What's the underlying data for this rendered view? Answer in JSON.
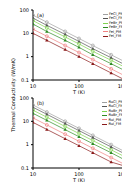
{
  "y_label": "Thermal Conductivity (W/mK)",
  "chart_data": [
    {
      "type": "line",
      "annotation": "(a)",
      "x_label": "T (K)",
      "log": true,
      "legend": "upper right",
      "x": [
        10,
        20,
        50,
        100,
        200,
        500,
        1000
      ],
      "xlim": [
        10,
        1000
      ],
      "xticks": [
        10,
        100,
        1000
      ],
      "ylim": [
        0.1,
        100
      ],
      "yticks": [
        0.1,
        1,
        10,
        100
      ],
      "series": [
        {
          "name": "FeCl_PM",
          "color": "#a0a0a0",
          "marker": "circle",
          "values": [
            60,
            30,
            12,
            6,
            3,
            1.2,
            0.6
          ]
        },
        {
          "name": "FeCl_FM",
          "color": "#555555",
          "marker": "triangle",
          "values": [
            45,
            22,
            9,
            4.5,
            2.2,
            0.9,
            0.45
          ]
        },
        {
          "name": "FeBr_PM",
          "color": "#7fd34e",
          "marker": "circle",
          "values": [
            35,
            17,
            7,
            3.5,
            1.7,
            0.7,
            0.35
          ]
        },
        {
          "name": "FeBr_FM",
          "color": "#2e8b22",
          "marker": "triangle",
          "values": [
            25,
            12,
            5,
            2.5,
            1.2,
            0.5,
            0.25
          ]
        },
        {
          "name": "FeI_PM",
          "color": "#f08080",
          "marker": "circle",
          "values": [
            15,
            7.5,
            3,
            1.5,
            0.75,
            0.3,
            0.15
          ]
        },
        {
          "name": "FeI_FM",
          "color": "#8b1a1a",
          "marker": "triangle",
          "values": [
            10,
            5,
            2,
            1,
            0.5,
            0.2,
            0.1
          ]
        }
      ]
    },
    {
      "type": "line",
      "annotation": "(b)",
      "x_label": "T (K)",
      "log": true,
      "legend": "upper right",
      "x": [
        10,
        20,
        50,
        100,
        200,
        500,
        1000
      ],
      "xlim": [
        10,
        1000
      ],
      "xticks": [
        10,
        100,
        1000
      ],
      "ylim": [
        0.1,
        100
      ],
      "yticks": [
        0.1,
        1,
        10,
        100
      ],
      "series": [
        {
          "name": "RuCl_PM",
          "color": "#a0a0a0",
          "marker": "circle",
          "values": [
            50,
            25,
            10,
            5,
            2.5,
            1,
            0.5
          ]
        },
        {
          "name": "RuCl_FM",
          "color": "#555555",
          "marker": "triangle",
          "values": [
            40,
            20,
            8,
            4,
            2,
            0.8,
            0.4
          ]
        },
        {
          "name": "RuBr_PM",
          "color": "#7fd34e",
          "marker": "circle",
          "values": [
            30,
            15,
            6,
            3,
            1.5,
            0.6,
            0.3
          ]
        },
        {
          "name": "RuBr_FM",
          "color": "#2e8b22",
          "marker": "triangle",
          "values": [
            22,
            11,
            4.4,
            2.2,
            1.1,
            0.45,
            0.22
          ]
        },
        {
          "name": "RuI_PM",
          "color": "#f08080",
          "marker": "circle",
          "values": [
            14,
            7,
            2.8,
            1.4,
            0.7,
            0.28,
            0.14
          ]
        },
        {
          "name": "RuI_FM",
          "color": "#8b1a1a",
          "marker": "triangle",
          "values": [
            9,
            4.5,
            1.8,
            0.9,
            0.45,
            0.18,
            0.12
          ]
        }
      ]
    }
  ]
}
